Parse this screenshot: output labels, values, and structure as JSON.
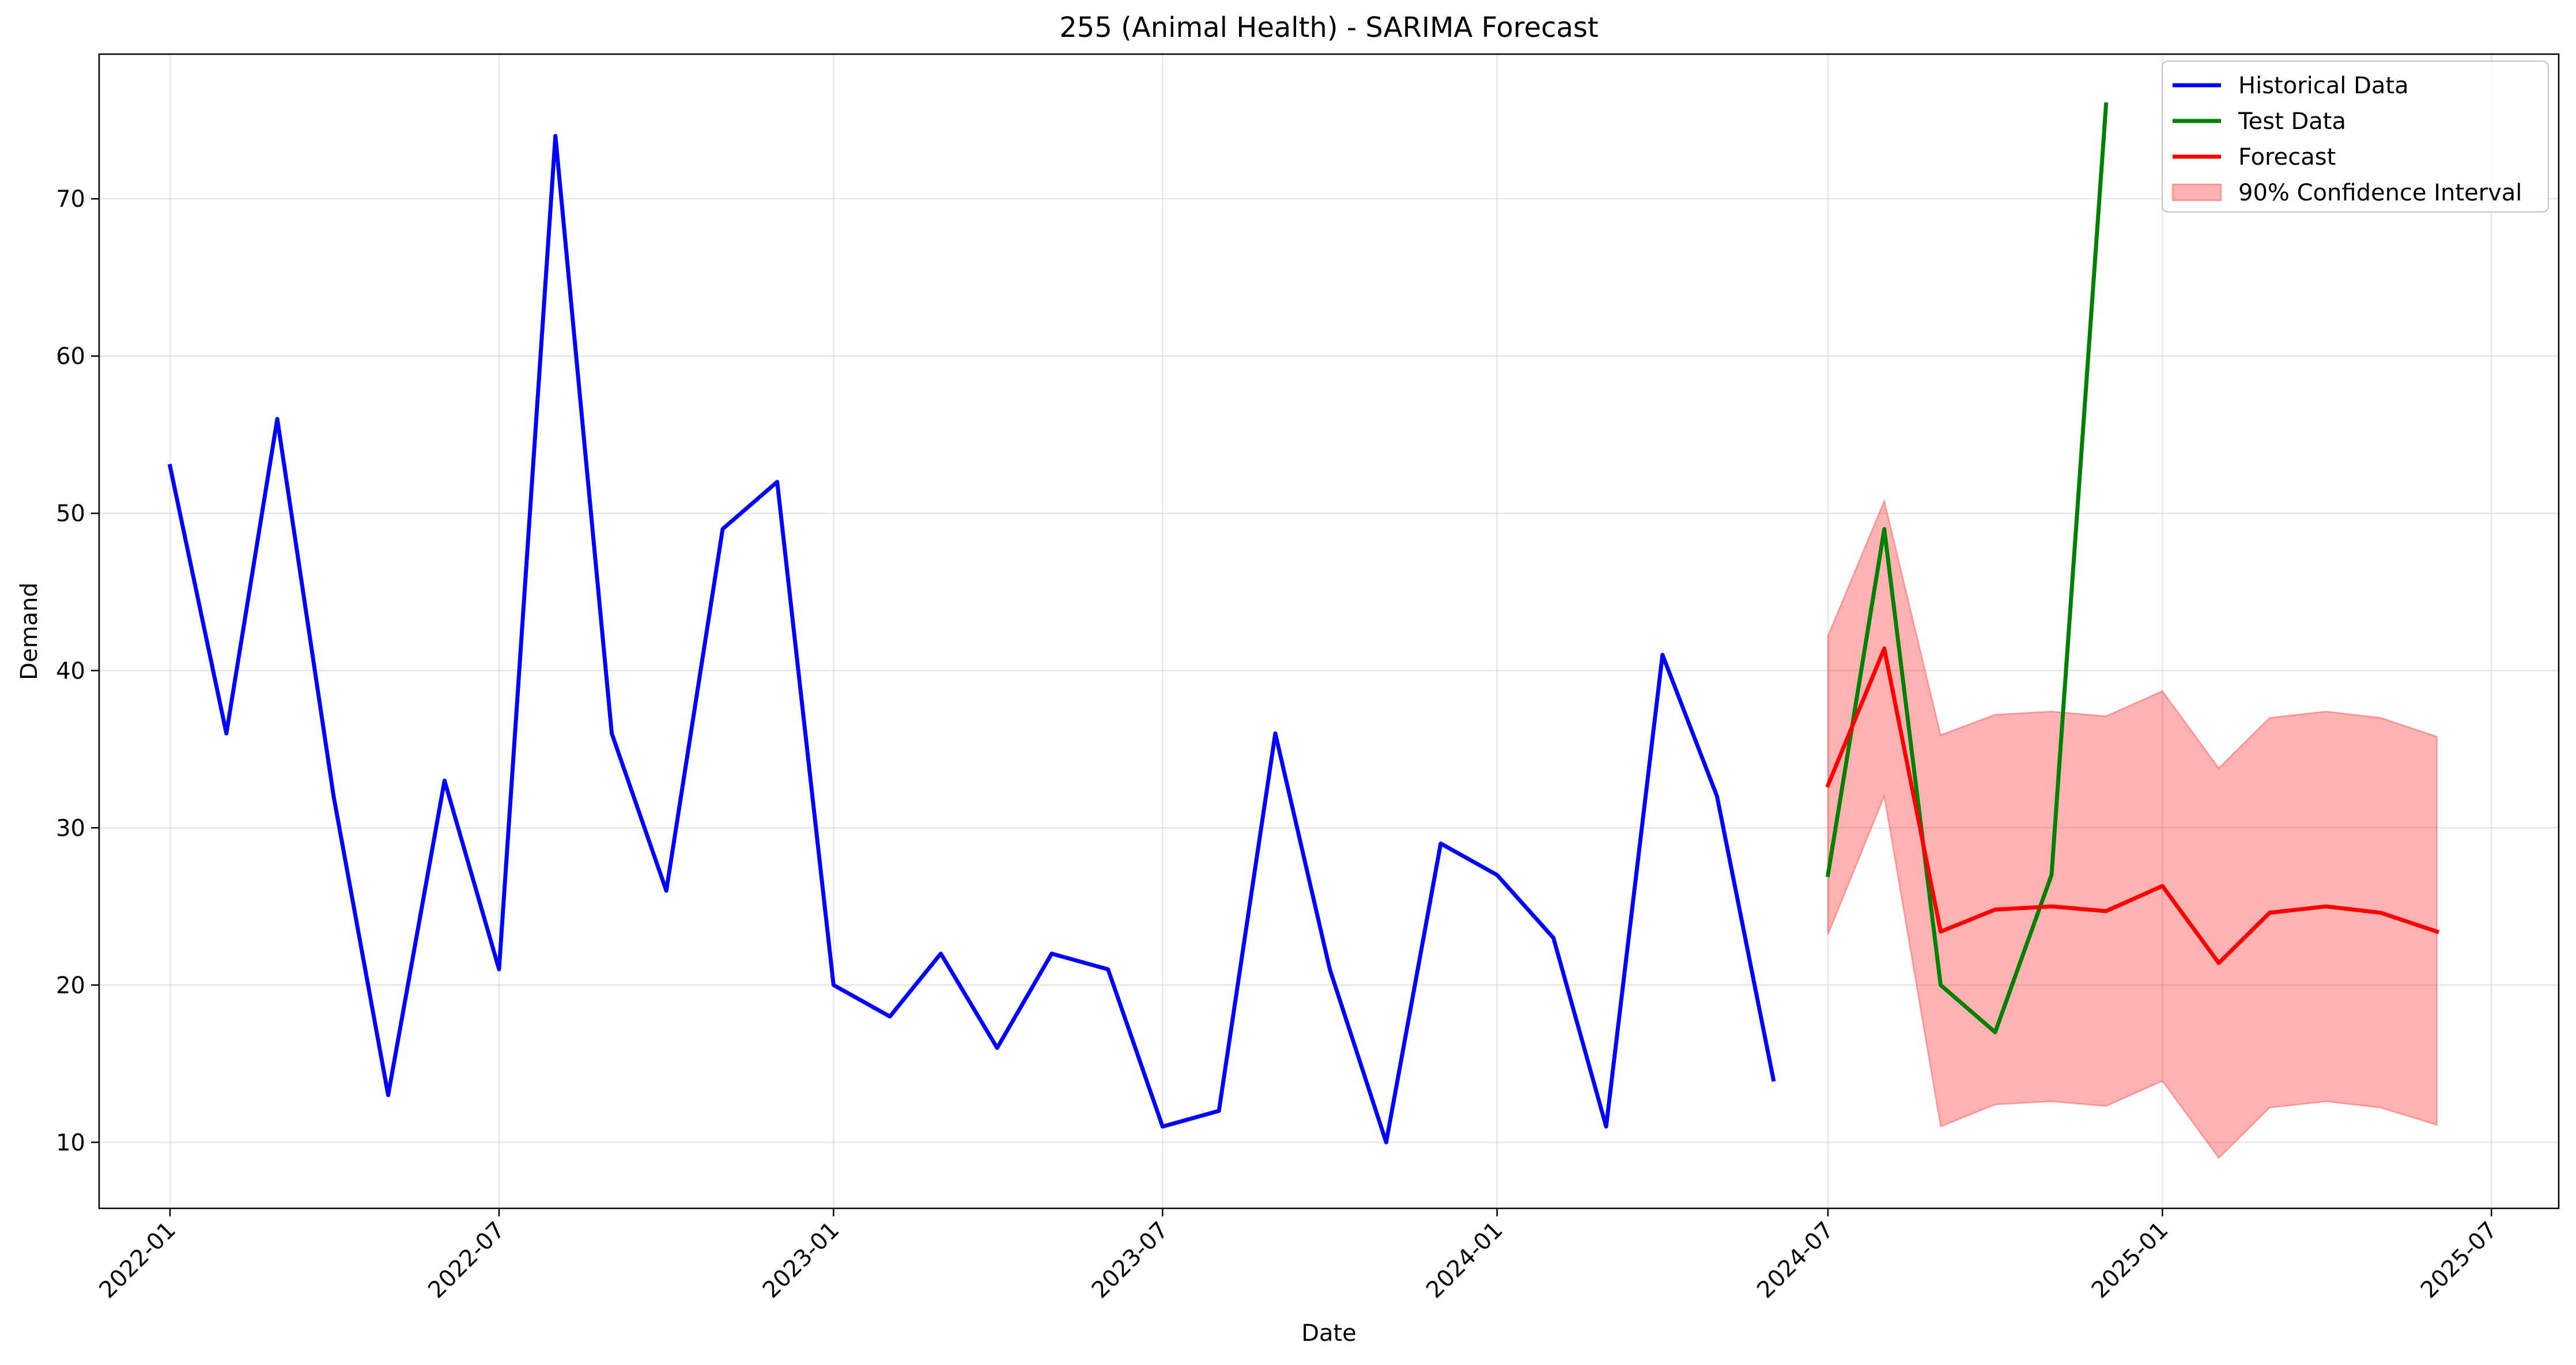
{
  "chart_data": {
    "type": "line",
    "title": "255 (Animal Health) - SARIMA Forecast",
    "xlabel": "Date",
    "ylabel": "Demand",
    "x_axis": {
      "type": "date",
      "range": [
        "2021-11-23",
        "2025-08-07"
      ],
      "ticks": [
        {
          "date": "2022-01-01",
          "label": "2022-01"
        },
        {
          "date": "2022-07-01",
          "label": "2022-07"
        },
        {
          "date": "2023-01-01",
          "label": "2023-01"
        },
        {
          "date": "2023-07-01",
          "label": "2023-07"
        },
        {
          "date": "2024-01-01",
          "label": "2024-01"
        },
        {
          "date": "2024-07-01",
          "label": "2024-07"
        },
        {
          "date": "2025-01-01",
          "label": "2025-01"
        },
        {
          "date": "2025-07-01",
          "label": "2025-07"
        }
      ]
    },
    "y_axis": {
      "range": [
        5.8,
        79.2
      ],
      "ticks": [
        10,
        20,
        30,
        40,
        50,
        60,
        70
      ]
    },
    "grid": true,
    "legend": {
      "position": "top-right",
      "entries": [
        {
          "label": "Historical Data",
          "color": "#0000ff",
          "kind": "line"
        },
        {
          "label": "Test Data",
          "color": "#008000",
          "kind": "line"
        },
        {
          "label": "Forecast",
          "color": "#ff0000",
          "kind": "line"
        },
        {
          "label": "90% Confidence Interval",
          "color": "#ff0000",
          "kind": "patch"
        }
      ]
    },
    "series": [
      {
        "name": "Historical Data",
        "color": "#0000ff",
        "dates": [
          "2022-01-01",
          "2022-02-01",
          "2022-03-01",
          "2022-04-01",
          "2022-05-01",
          "2022-06-01",
          "2022-07-01",
          "2022-08-01",
          "2022-09-01",
          "2022-10-01",
          "2022-11-01",
          "2022-12-01",
          "2023-01-01",
          "2023-02-01",
          "2023-03-01",
          "2023-04-01",
          "2023-05-01",
          "2023-06-01",
          "2023-07-01",
          "2023-08-01",
          "2023-09-01",
          "2023-10-01",
          "2023-11-01",
          "2023-12-01",
          "2024-01-01",
          "2024-02-01",
          "2024-03-01",
          "2024-04-01",
          "2024-05-01",
          "2024-06-01"
        ],
        "values": [
          53,
          36,
          56,
          32,
          13,
          33,
          21,
          74,
          36,
          26,
          49,
          52,
          20,
          18,
          22,
          16,
          22,
          21,
          11,
          12,
          36,
          21,
          10,
          29,
          27,
          23,
          11,
          41,
          32,
          14
        ]
      },
      {
        "name": "Test Data",
        "color": "#008000",
        "dates": [
          "2024-07-01",
          "2024-08-01",
          "2024-09-01",
          "2024-10-01",
          "2024-11-01",
          "2024-12-01"
        ],
        "values": [
          27,
          49,
          20,
          17,
          27,
          76
        ]
      },
      {
        "name": "Forecast",
        "color": "#ff0000",
        "dates": [
          "2024-07-01",
          "2024-08-01",
          "2024-09-01",
          "2024-10-01",
          "2024-11-01",
          "2024-12-01",
          "2025-01-01",
          "2025-02-01",
          "2025-03-01",
          "2025-04-01",
          "2025-05-01",
          "2025-06-01"
        ],
        "values": [
          32.7,
          41.4,
          23.4,
          24.8,
          25.0,
          24.7,
          26.3,
          21.4,
          24.6,
          25.0,
          24.6,
          23.4
        ]
      }
    ],
    "confidence_interval": {
      "name": "90% Confidence Interval",
      "color": "#ff0000",
      "dates": [
        "2024-07-01",
        "2024-08-01",
        "2024-09-01",
        "2024-10-01",
        "2024-11-01",
        "2024-12-01",
        "2025-01-01",
        "2025-02-01",
        "2025-03-01",
        "2025-04-01",
        "2025-05-01",
        "2025-06-01"
      ],
      "lower": [
        23.2,
        32.0,
        11.0,
        12.4,
        12.6,
        12.3,
        13.9,
        9.0,
        12.2,
        12.6,
        12.2,
        11.1
      ],
      "upper": [
        42.2,
        50.8,
        35.9,
        37.2,
        37.4,
        37.1,
        38.7,
        33.8,
        37.0,
        37.4,
        37.0,
        35.8
      ]
    }
  }
}
